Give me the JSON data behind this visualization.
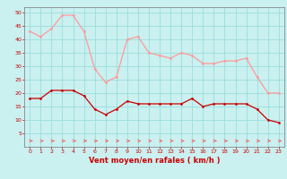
{
  "hours": [
    0,
    1,
    2,
    3,
    4,
    5,
    6,
    7,
    8,
    9,
    10,
    11,
    12,
    13,
    14,
    15,
    16,
    17,
    18,
    19,
    20,
    21,
    22,
    23
  ],
  "wind_avg": [
    18,
    18,
    21,
    21,
    21,
    19,
    14,
    12,
    14,
    17,
    16,
    16,
    16,
    16,
    16,
    18,
    15,
    16,
    16,
    16,
    16,
    14,
    10,
    9
  ],
  "wind_gust": [
    43,
    41,
    44,
    49,
    49,
    43,
    29,
    24,
    26,
    40,
    41,
    35,
    34,
    33,
    35,
    34,
    31,
    31,
    32,
    32,
    33,
    26,
    20,
    20
  ],
  "bg_color": "#caf0f0",
  "grid_color": "#99dddd",
  "avg_color": "#cc0000",
  "gust_color": "#ff9999",
  "arrow_color": "#ff5555",
  "xlabel": "Vent moyen/en rafales ( km/h )",
  "xlabel_color": "#cc0000",
  "tick_color": "#cc0000",
  "spine_color": "#888888",
  "ylim": [
    0,
    52
  ],
  "yticks": [
    5,
    10,
    15,
    20,
    25,
    30,
    35,
    40,
    45,
    50
  ],
  "xlim": [
    -0.5,
    23.5
  ]
}
